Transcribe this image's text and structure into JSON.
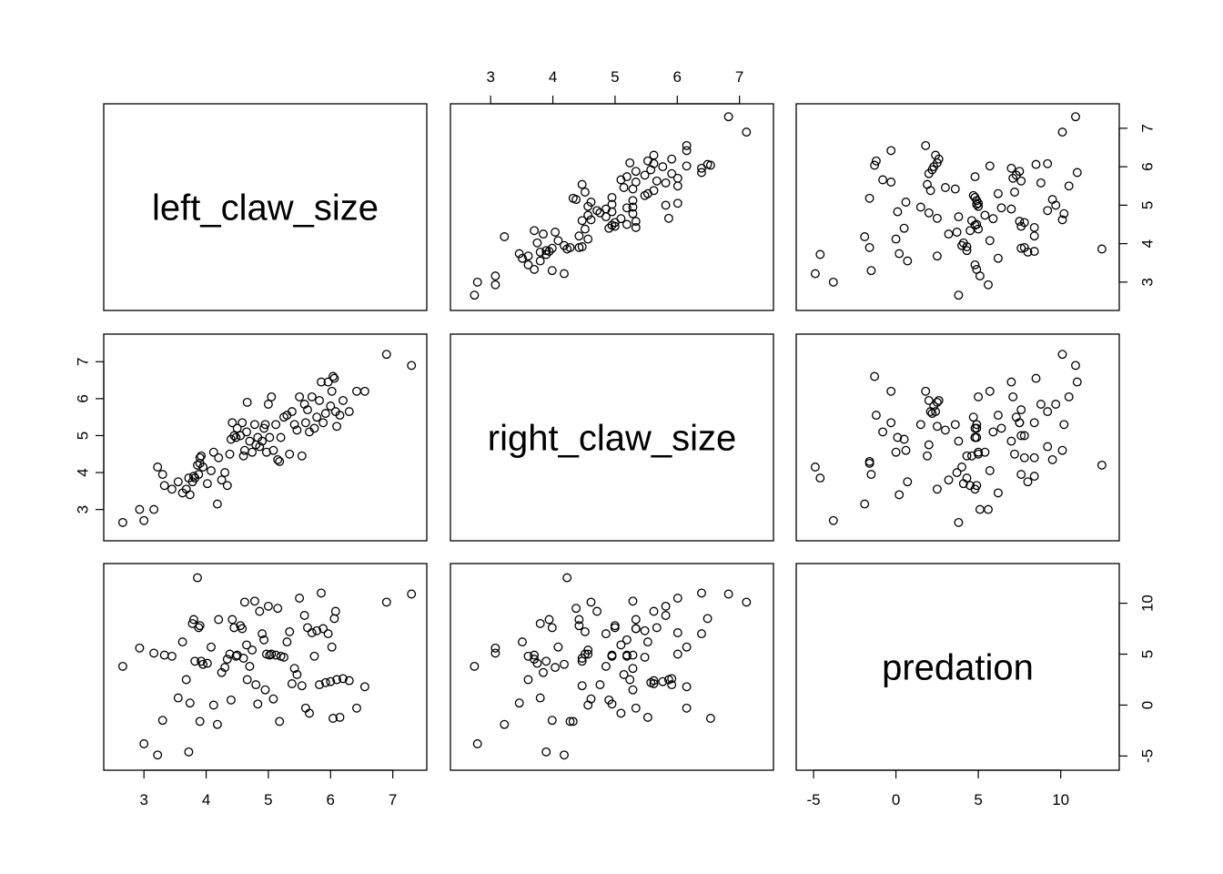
{
  "chart_data": {
    "type": "scatter",
    "variables": [
      "left_claw_size",
      "right_claw_size",
      "predation"
    ],
    "axes": {
      "left_claw_size": {
        "range": [
          2.5,
          7.4
        ],
        "ticks": [
          3,
          4,
          5,
          6,
          7
        ],
        "tick_labels": [
          "3",
          "4",
          "5",
          "6",
          "7"
        ]
      },
      "right_claw_size": {
        "range": [
          2.4,
          7.5
        ],
        "ticks": [
          3,
          4,
          5,
          6,
          7
        ],
        "tick_labels": [
          "3",
          "4",
          "5",
          "6",
          "7"
        ]
      },
      "predation": {
        "range": [
          -5.5,
          13
        ],
        "ticks": [
          -5,
          0,
          5,
          10
        ],
        "tick_labels": [
          "-5",
          "0",
          "5",
          "10"
        ]
      }
    },
    "grid": false,
    "legend": "none",
    "point_style": "open-circle",
    "point_color": "#000000",
    "points": [
      [
        2.66,
        2.65,
        3.8
      ],
      [
        2.93,
        3.0,
        5.6
      ],
      [
        3.0,
        2.7,
        -3.8
      ],
      [
        3.16,
        3.0,
        5.1
      ],
      [
        3.22,
        4.15,
        -4.9
      ],
      [
        3.3,
        3.95,
        -1.5
      ],
      [
        3.33,
        3.65,
        4.9
      ],
      [
        3.45,
        3.55,
        4.8
      ],
      [
        3.55,
        3.75,
        0.7
      ],
      [
        3.62,
        3.45,
        6.2
      ],
      [
        3.68,
        3.55,
        2.5
      ],
      [
        3.72,
        3.85,
        -4.6
      ],
      [
        3.74,
        3.4,
        0.2
      ],
      [
        3.78,
        3.75,
        8.0
      ],
      [
        3.8,
        3.9,
        8.4
      ],
      [
        3.82,
        3.85,
        4.3
      ],
      [
        3.86,
        4.2,
        12.5
      ],
      [
        3.88,
        3.95,
        7.6
      ],
      [
        3.9,
        4.4,
        7.8
      ],
      [
        3.9,
        4.25,
        -1.6
      ],
      [
        3.92,
        4.45,
        4.3
      ],
      [
        3.95,
        4.15,
        4.0
      ],
      [
        4.02,
        3.7,
        4.1
      ],
      [
        4.08,
        4.05,
        5.7
      ],
      [
        4.12,
        4.55,
        0.0
      ],
      [
        4.18,
        3.15,
        -1.9
      ],
      [
        4.2,
        4.4,
        8.4
      ],
      [
        4.25,
        3.8,
        3.2
      ],
      [
        4.3,
        4.0,
        3.7
      ],
      [
        4.34,
        3.65,
        4.5
      ],
      [
        4.38,
        4.5,
        5.0
      ],
      [
        4.4,
        4.9,
        0.5
      ],
      [
        4.42,
        5.35,
        8.4
      ],
      [
        4.45,
        5.0,
        7.6
      ],
      [
        4.48,
        4.95,
        4.8
      ],
      [
        4.5,
        5.2,
        4.9
      ],
      [
        4.55,
        5.0,
        7.8
      ],
      [
        4.58,
        5.35,
        7.5
      ],
      [
        4.6,
        4.45,
        4.6
      ],
      [
        4.62,
        4.6,
        10.1
      ],
      [
        4.65,
        5.1,
        5.9
      ],
      [
        4.66,
        5.9,
        2.5
      ],
      [
        4.7,
        4.85,
        3.8
      ],
      [
        4.74,
        4.55,
        5.4
      ],
      [
        4.78,
        5.3,
        10.2
      ],
      [
        4.8,
        4.75,
        2.0
      ],
      [
        4.83,
        4.95,
        0.1
      ],
      [
        4.86,
        4.7,
        9.2
      ],
      [
        4.9,
        4.85,
        7.0
      ],
      [
        4.93,
        5.2,
        6.4
      ],
      [
        4.95,
        5.3,
        1.5
      ],
      [
        4.97,
        4.55,
        5.0
      ],
      [
        5.0,
        5.85,
        9.7
      ],
      [
        5.02,
        4.95,
        4.9
      ],
      [
        5.05,
        6.05,
        5.0
      ],
      [
        5.08,
        4.6,
        0.6
      ],
      [
        5.12,
        5.3,
        4.9
      ],
      [
        5.15,
        4.35,
        9.5
      ],
      [
        5.18,
        4.3,
        -1.6
      ],
      [
        5.2,
        4.95,
        4.8
      ],
      [
        5.25,
        5.5,
        4.7
      ],
      [
        5.3,
        5.55,
        6.2
      ],
      [
        5.34,
        4.5,
        7.2
      ],
      [
        5.38,
        5.65,
        2.1
      ],
      [
        5.42,
        5.3,
        3.6
      ],
      [
        5.46,
        5.15,
        3.0
      ],
      [
        5.5,
        6.05,
        10.5
      ],
      [
        5.54,
        4.45,
        1.9
      ],
      [
        5.58,
        5.85,
        8.8
      ],
      [
        5.6,
        5.35,
        -0.3
      ],
      [
        5.63,
        5.7,
        7.6
      ],
      [
        5.66,
        5.1,
        -0.8
      ],
      [
        5.7,
        6.05,
        7.1
      ],
      [
        5.74,
        5.2,
        4.8
      ],
      [
        5.78,
        5.5,
        7.3
      ],
      [
        5.82,
        5.95,
        2.0
      ],
      [
        5.85,
        6.45,
        11.0
      ],
      [
        5.88,
        5.35,
        7.5
      ],
      [
        5.92,
        5.6,
        2.2
      ],
      [
        5.96,
        6.45,
        7.0
      ],
      [
        6.0,
        5.8,
        2.3
      ],
      [
        6.02,
        6.2,
        5.7
      ],
      [
        6.04,
        6.6,
        -1.3
      ],
      [
        6.06,
        6.55,
        8.5
      ],
      [
        6.08,
        5.65,
        9.2
      ],
      [
        6.1,
        5.25,
        2.5
      ],
      [
        6.15,
        5.55,
        -1.2
      ],
      [
        6.2,
        5.95,
        2.6
      ],
      [
        6.3,
        5.65,
        2.4
      ],
      [
        6.42,
        6.2,
        -0.3
      ],
      [
        6.55,
        6.2,
        1.8
      ],
      [
        6.9,
        7.2,
        10.1
      ],
      [
        7.3,
        6.9,
        10.9
      ]
    ]
  }
}
